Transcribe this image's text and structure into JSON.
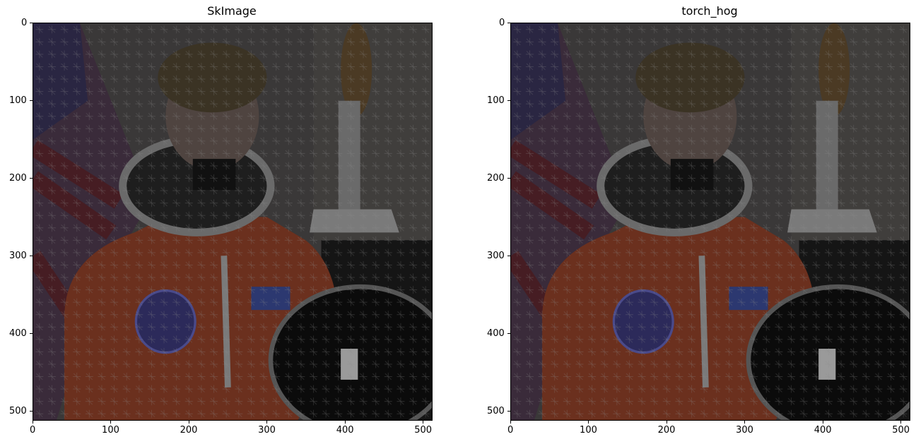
{
  "chart_data": [
    {
      "type": "image",
      "title": "SkImage",
      "xlabel": "",
      "ylabel": "",
      "x_ticks": [
        "0",
        "100",
        "200",
        "300",
        "400",
        "500"
      ],
      "y_ticks": [
        "0",
        "100",
        "200",
        "300",
        "400",
        "500"
      ],
      "xlim": [
        0,
        512
      ],
      "ylim": [
        512,
        0
      ],
      "content": "HOG overlay on astronaut photo"
    },
    {
      "type": "image",
      "title": "torch_hog",
      "xlabel": "",
      "ylabel": "",
      "x_ticks": [
        "0",
        "100",
        "200",
        "300",
        "400",
        "500"
      ],
      "y_ticks": [
        "0",
        "100",
        "200",
        "300",
        "400",
        "500"
      ],
      "xlim": [
        0,
        512
      ],
      "ylim": [
        512,
        0
      ],
      "content": "HOG overlay on astronaut photo"
    }
  ]
}
